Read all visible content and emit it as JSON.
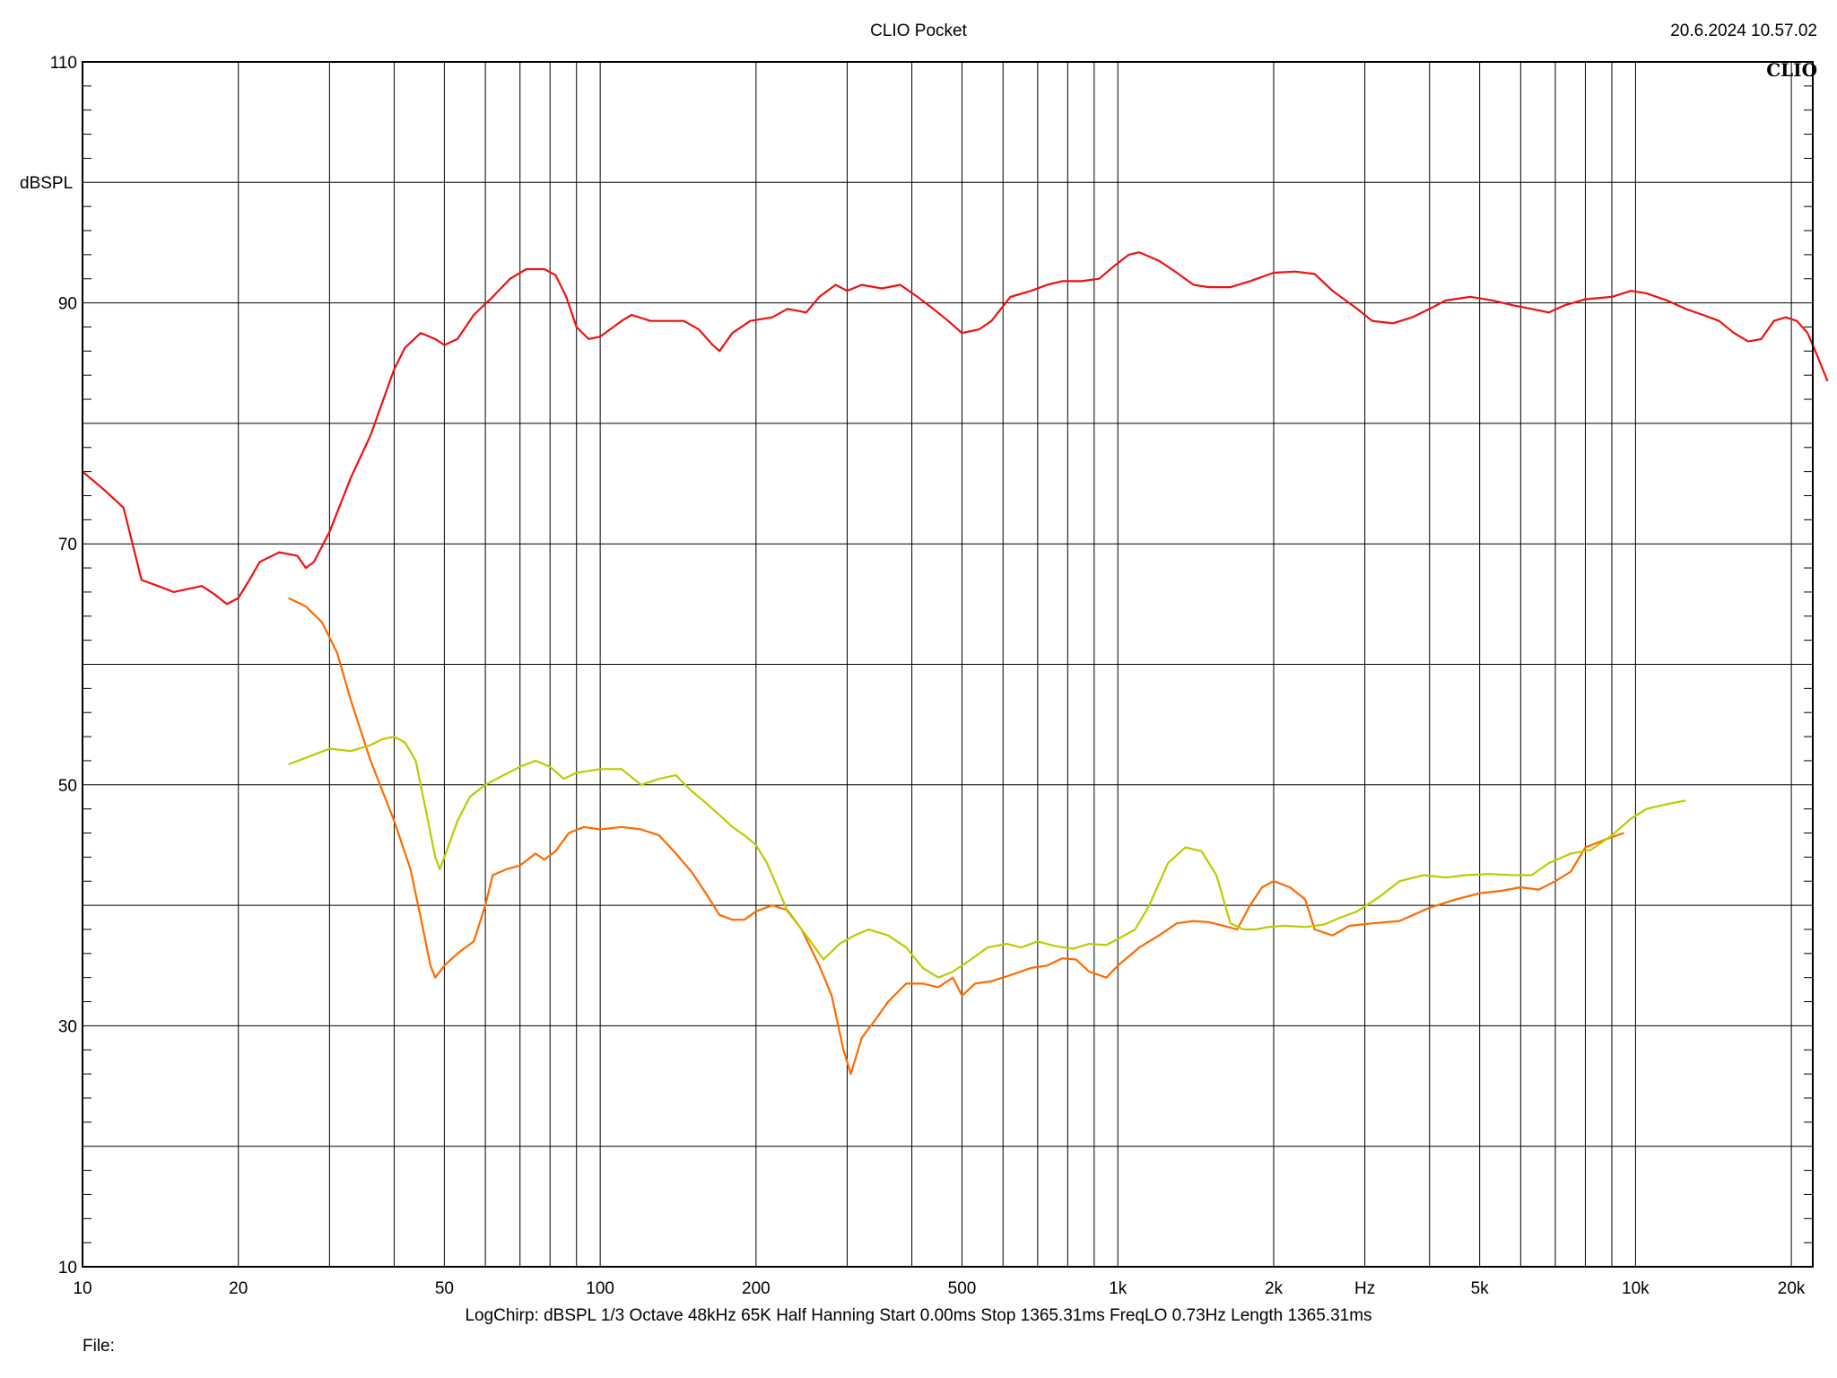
{
  "header": {
    "title": "CLIO Pocket",
    "timestamp": "20.6.2024 10.57.02",
    "brand": "CLIO"
  },
  "footer": {
    "settings": "LogChirp:  dBSPL   1/3 Octave   48kHz   65K   Half Hanning   Start 0.00ms    Stop 1365.31ms    FreqLO 0.73Hz    Length 1365.31ms",
    "file_label": "File:"
  },
  "colors": {
    "background": "#ffffff",
    "grid": "#000000",
    "red": "#ee1111",
    "orange": "#ff6a00",
    "yellowgreen": "#bccc00"
  },
  "chart_data": {
    "type": "line",
    "title": "CLIO Pocket",
    "xlabel": "Hz",
    "ylabel": "dBSPL",
    "x_scale": "log",
    "xlim": [
      10,
      22000
    ],
    "ylim": [
      10,
      110
    ],
    "grid": true,
    "x_ticks": [
      {
        "value": 10,
        "label": "10"
      },
      {
        "value": 20,
        "label": "20"
      },
      {
        "value": 50,
        "label": "50"
      },
      {
        "value": 100,
        "label": "100"
      },
      {
        "value": 200,
        "label": "200"
      },
      {
        "value": 500,
        "label": "500"
      },
      {
        "value": 1000,
        "label": "1k"
      },
      {
        "value": 2000,
        "label": "2k"
      },
      {
        "value": 3000,
        "label": "Hz"
      },
      {
        "value": 5000,
        "label": "5k"
      },
      {
        "value": 10000,
        "label": "10k"
      },
      {
        "value": 20000,
        "label": "20k"
      }
    ],
    "y_ticks": [
      {
        "value": 110,
        "label": "110"
      },
      {
        "value": 90,
        "label": "90"
      },
      {
        "value": 70,
        "label": "70"
      },
      {
        "value": 50,
        "label": "50"
      },
      {
        "value": 30,
        "label": "30"
      },
      {
        "value": 10,
        "label": "10"
      }
    ],
    "series": [
      {
        "color": "#ee1111",
        "points": [
          [
            10,
            76
          ],
          [
            11,
            74.5
          ],
          [
            12,
            73
          ],
          [
            13,
            67
          ],
          [
            14,
            66.5
          ],
          [
            15,
            66
          ],
          [
            17,
            66.5
          ],
          [
            18,
            65.8
          ],
          [
            19,
            65
          ],
          [
            20,
            65.5
          ],
          [
            21,
            67
          ],
          [
            22,
            68.5
          ],
          [
            24,
            69.3
          ],
          [
            26,
            69
          ],
          [
            27,
            68
          ],
          [
            28,
            68.5
          ],
          [
            30,
            71
          ],
          [
            33,
            75.5
          ],
          [
            36,
            79
          ],
          [
            40,
            84.5
          ],
          [
            42,
            86.3
          ],
          [
            45,
            87.5
          ],
          [
            48,
            87
          ],
          [
            50,
            86.5
          ],
          [
            53,
            87
          ],
          [
            57,
            89
          ],
          [
            62,
            90.5
          ],
          [
            67,
            92
          ],
          [
            72,
            92.8
          ],
          [
            78,
            92.8
          ],
          [
            82,
            92.3
          ],
          [
            86,
            90.5
          ],
          [
            90,
            88
          ],
          [
            95,
            87
          ],
          [
            100,
            87.2
          ],
          [
            110,
            88.5
          ],
          [
            115,
            89
          ],
          [
            125,
            88.5
          ],
          [
            135,
            88.5
          ],
          [
            145,
            88.5
          ],
          [
            155,
            87.8
          ],
          [
            165,
            86.5
          ],
          [
            170,
            86
          ],
          [
            180,
            87.5
          ],
          [
            195,
            88.5
          ],
          [
            215,
            88.8
          ],
          [
            230,
            89.5
          ],
          [
            250,
            89.2
          ],
          [
            265,
            90.5
          ],
          [
            285,
            91.5
          ],
          [
            300,
            91
          ],
          [
            320,
            91.5
          ],
          [
            350,
            91.2
          ],
          [
            380,
            91.5
          ],
          [
            410,
            90.5
          ],
          [
            440,
            89.5
          ],
          [
            470,
            88.5
          ],
          [
            500,
            87.5
          ],
          [
            540,
            87.8
          ],
          [
            570,
            88.5
          ],
          [
            620,
            90.5
          ],
          [
            680,
            91
          ],
          [
            730,
            91.5
          ],
          [
            780,
            91.8
          ],
          [
            850,
            91.8
          ],
          [
            920,
            92
          ],
          [
            980,
            93
          ],
          [
            1050,
            94
          ],
          [
            1100,
            94.2
          ],
          [
            1200,
            93.5
          ],
          [
            1300,
            92.5
          ],
          [
            1400,
            91.5
          ],
          [
            1500,
            91.3
          ],
          [
            1650,
            91.3
          ],
          [
            1800,
            91.8
          ],
          [
            2000,
            92.5
          ],
          [
            2200,
            92.6
          ],
          [
            2400,
            92.4
          ],
          [
            2600,
            91
          ],
          [
            2900,
            89.5
          ],
          [
            3100,
            88.5
          ],
          [
            3400,
            88.3
          ],
          [
            3700,
            88.8
          ],
          [
            4000,
            89.5
          ],
          [
            4300,
            90.2
          ],
          [
            4800,
            90.5
          ],
          [
            5300,
            90.2
          ],
          [
            5800,
            89.8
          ],
          [
            6300,
            89.5
          ],
          [
            6800,
            89.2
          ],
          [
            7300,
            89.8
          ],
          [
            8000,
            90.3
          ],
          [
            9000,
            90.5
          ],
          [
            9800,
            91
          ],
          [
            10500,
            90.8
          ],
          [
            11500,
            90.2
          ],
          [
            12500,
            89.5
          ],
          [
            13500,
            89
          ],
          [
            14500,
            88.5
          ],
          [
            15500,
            87.5
          ],
          [
            16500,
            86.8
          ],
          [
            17500,
            87
          ],
          [
            18500,
            88.5
          ],
          [
            19500,
            88.8
          ],
          [
            20500,
            88.5
          ],
          [
            21500,
            87.5
          ],
          [
            22500,
            85.5
          ],
          [
            23500,
            83.5
          ]
        ]
      },
      {
        "color": "#ff6a00",
        "points": [
          [
            25,
            65.5
          ],
          [
            27,
            64.8
          ],
          [
            29,
            63.5
          ],
          [
            31,
            61
          ],
          [
            33,
            57
          ],
          [
            36,
            52
          ],
          [
            40,
            47
          ],
          [
            43,
            43
          ],
          [
            45,
            39
          ],
          [
            47,
            35
          ],
          [
            48,
            34
          ],
          [
            50,
            35
          ],
          [
            53,
            36
          ],
          [
            57,
            37
          ],
          [
            60,
            40
          ],
          [
            62,
            42.5
          ],
          [
            66,
            43
          ],
          [
            70,
            43.3
          ],
          [
            75,
            44.3
          ],
          [
            78,
            43.8
          ],
          [
            82,
            44.5
          ],
          [
            87,
            46
          ],
          [
            93,
            46.5
          ],
          [
            100,
            46.3
          ],
          [
            110,
            46.5
          ],
          [
            120,
            46.3
          ],
          [
            130,
            45.8
          ],
          [
            140,
            44.3
          ],
          [
            150,
            42.8
          ],
          [
            160,
            41
          ],
          [
            170,
            39.2
          ],
          [
            180,
            38.8
          ],
          [
            190,
            38.8
          ],
          [
            200,
            39.5
          ],
          [
            215,
            40
          ],
          [
            230,
            39.6
          ],
          [
            245,
            38
          ],
          [
            265,
            35
          ],
          [
            280,
            32.5
          ],
          [
            295,
            28
          ],
          [
            305,
            26
          ],
          [
            320,
            29
          ],
          [
            340,
            30.5
          ],
          [
            360,
            32
          ],
          [
            390,
            33.5
          ],
          [
            420,
            33.5
          ],
          [
            450,
            33.2
          ],
          [
            480,
            34
          ],
          [
            500,
            32.5
          ],
          [
            530,
            33.5
          ],
          [
            570,
            33.7
          ],
          [
            620,
            34.2
          ],
          [
            680,
            34.8
          ],
          [
            730,
            35
          ],
          [
            780,
            35.6
          ],
          [
            830,
            35.5
          ],
          [
            880,
            34.5
          ],
          [
            950,
            34
          ],
          [
            1000,
            35
          ],
          [
            1100,
            36.5
          ],
          [
            1200,
            37.5
          ],
          [
            1300,
            38.5
          ],
          [
            1400,
            38.7
          ],
          [
            1500,
            38.6
          ],
          [
            1600,
            38.3
          ],
          [
            1700,
            38
          ],
          [
            1800,
            40
          ],
          [
            1900,
            41.5
          ],
          [
            2000,
            42
          ],
          [
            2150,
            41.5
          ],
          [
            2300,
            40.5
          ],
          [
            2400,
            38
          ],
          [
            2600,
            37.5
          ],
          [
            2800,
            38.3
          ],
          [
            3100,
            38.5
          ],
          [
            3500,
            38.7
          ],
          [
            4000,
            39.8
          ],
          [
            4500,
            40.5
          ],
          [
            5000,
            41
          ],
          [
            5500,
            41.2
          ],
          [
            6000,
            41.5
          ],
          [
            6500,
            41.3
          ],
          [
            7000,
            42
          ],
          [
            7500,
            42.8
          ],
          [
            8000,
            44.8
          ],
          [
            8800,
            45.5
          ],
          [
            9500,
            46
          ]
        ]
      },
      {
        "color": "#bccc00",
        "points": [
          [
            25,
            51.7
          ],
          [
            28,
            52.5
          ],
          [
            30,
            53
          ],
          [
            33,
            52.8
          ],
          [
            36,
            53.3
          ],
          [
            38,
            53.8
          ],
          [
            40,
            54
          ],
          [
            42,
            53.5
          ],
          [
            44,
            52
          ],
          [
            46,
            48
          ],
          [
            48,
            44
          ],
          [
            49,
            43
          ],
          [
            51,
            45
          ],
          [
            53,
            47
          ],
          [
            56,
            49
          ],
          [
            60,
            50
          ],
          [
            65,
            50.8
          ],
          [
            70,
            51.5
          ],
          [
            75,
            52
          ],
          [
            80,
            51.5
          ],
          [
            85,
            50.5
          ],
          [
            90,
            51
          ],
          [
            100,
            51.3
          ],
          [
            110,
            51.3
          ],
          [
            120,
            50
          ],
          [
            130,
            50.5
          ],
          [
            140,
            50.8
          ],
          [
            150,
            49.5
          ],
          [
            160,
            48.5
          ],
          [
            170,
            47.5
          ],
          [
            180,
            46.5
          ],
          [
            190,
            45.8
          ],
          [
            200,
            45
          ],
          [
            210,
            43.5
          ],
          [
            220,
            41.5
          ],
          [
            230,
            39.5
          ],
          [
            250,
            37.5
          ],
          [
            270,
            35.5
          ],
          [
            290,
            36.8
          ],
          [
            310,
            37.5
          ],
          [
            330,
            38
          ],
          [
            360,
            37.5
          ],
          [
            390,
            36.5
          ],
          [
            420,
            34.8
          ],
          [
            450,
            34
          ],
          [
            480,
            34.5
          ],
          [
            520,
            35.5
          ],
          [
            560,
            36.5
          ],
          [
            610,
            36.8
          ],
          [
            650,
            36.5
          ],
          [
            700,
            37
          ],
          [
            760,
            36.6
          ],
          [
            820,
            36.4
          ],
          [
            880,
            36.8
          ],
          [
            950,
            36.7
          ],
          [
            1000,
            37.2
          ],
          [
            1080,
            38
          ],
          [
            1150,
            40
          ],
          [
            1250,
            43.5
          ],
          [
            1350,
            44.8
          ],
          [
            1450,
            44.5
          ],
          [
            1550,
            42.5
          ],
          [
            1650,
            38.5
          ],
          [
            1750,
            38
          ],
          [
            1850,
            38
          ],
          [
            1950,
            38.2
          ],
          [
            2100,
            38.3
          ],
          [
            2300,
            38.2
          ],
          [
            2500,
            38.4
          ],
          [
            2700,
            39
          ],
          [
            2900,
            39.5
          ],
          [
            3200,
            40.7
          ],
          [
            3500,
            42
          ],
          [
            3900,
            42.5
          ],
          [
            4300,
            42.3
          ],
          [
            4700,
            42.5
          ],
          [
            5200,
            42.6
          ],
          [
            5800,
            42.5
          ],
          [
            6300,
            42.5
          ],
          [
            6800,
            43.5
          ],
          [
            7500,
            44.3
          ],
          [
            8200,
            44.6
          ],
          [
            9000,
            45.8
          ],
          [
            9800,
            47.2
          ],
          [
            10500,
            48
          ],
          [
            11500,
            48.4
          ],
          [
            12500,
            48.7
          ]
        ]
      }
    ]
  }
}
